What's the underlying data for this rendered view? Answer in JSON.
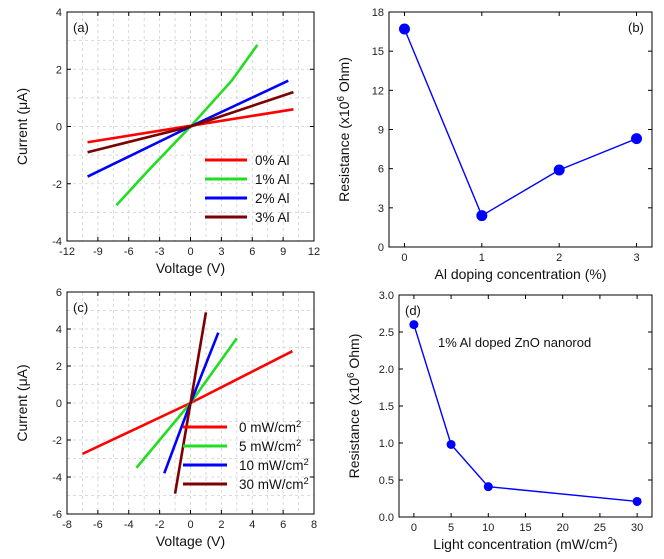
{
  "chart_data": [
    {
      "panel": "(a)",
      "type": "line",
      "xlabel": "Voltage (V)",
      "ylabel": "Current (μA)",
      "xlim": [
        -12,
        12
      ],
      "ylim": [
        -4,
        4
      ],
      "xticks": [
        -12,
        -9,
        -6,
        -3,
        0,
        3,
        6,
        9,
        12
      ],
      "yticks": [
        -4,
        -2,
        0,
        2,
        4
      ],
      "grid": true,
      "legend": "bottom-right",
      "series": [
        {
          "name": "0% Al",
          "color": "#ff0000",
          "points": [
            [
              -10,
              -0.55
            ],
            [
              10,
              0.6
            ]
          ]
        },
        {
          "name": "1% Al",
          "color": "#22dd22",
          "points": [
            [
              -7.2,
              -2.75
            ],
            [
              -4,
              -1.5
            ],
            [
              0,
              0
            ],
            [
              4,
              1.6
            ],
            [
              6.5,
              2.85
            ]
          ]
        },
        {
          "name": "2% Al",
          "color": "#0000ff",
          "points": [
            [
              -10,
              -1.75
            ],
            [
              0,
              0
            ],
            [
              9.5,
              1.6
            ]
          ]
        },
        {
          "name": "3% Al",
          "color": "#7b0000",
          "points": [
            [
              -10,
              -0.9
            ],
            [
              0,
              0
            ],
            [
              10,
              1.2
            ]
          ]
        }
      ]
    },
    {
      "panel": "(b)",
      "type": "line",
      "xlabel": "Al doping concentration (%)",
      "ylabel": "Resistance (x10⁶ Ohm)",
      "xlim": [
        -0.2,
        3.2
      ],
      "ylim": [
        0,
        18
      ],
      "xticks": [
        0,
        1,
        2,
        3
      ],
      "yticks": [
        0,
        3,
        6,
        9,
        12,
        15,
        18
      ],
      "color": "#0000ff",
      "x": [
        0,
        1,
        2,
        3
      ],
      "y": [
        16.7,
        2.4,
        5.9,
        8.3
      ]
    },
    {
      "panel": "(c)",
      "type": "line",
      "xlabel": "Voltage (V)",
      "ylabel": "Current (μA)",
      "xlim": [
        -8,
        8
      ],
      "ylim": [
        -6,
        6
      ],
      "xticks": [
        -8,
        -6,
        -4,
        -2,
        0,
        2,
        4,
        6,
        8
      ],
      "yticks": [
        -6,
        -4,
        -2,
        0,
        2,
        4,
        6
      ],
      "grid": true,
      "legend": "bottom-right",
      "series": [
        {
          "name": "0 mW/cm²",
          "color": "#ff0000",
          "points": [
            [
              -7,
              -2.75
            ],
            [
              0,
              0
            ],
            [
              6.6,
              2.8
            ]
          ]
        },
        {
          "name": "5 mW/cm²",
          "color": "#22dd22",
          "points": [
            [
              -3.5,
              -3.5
            ],
            [
              0,
              0
            ],
            [
              3,
              3.5
            ]
          ]
        },
        {
          "name": "10 mW/cm²",
          "color": "#0000ff",
          "points": [
            [
              -1.7,
              -3.8
            ],
            [
              0,
              0
            ],
            [
              1.8,
              3.8
            ]
          ]
        },
        {
          "name": "30 mW/cm²",
          "color": "#7b0000",
          "points": [
            [
              -1,
              -4.9
            ],
            [
              0,
              0
            ],
            [
              1,
              4.9
            ]
          ]
        }
      ]
    },
    {
      "panel": "(d)",
      "type": "line",
      "xlabel": "Light concentration (mW/cm²)",
      "ylabel": "Resistance (x10⁶ Ohm)",
      "annotation": "1% Al doped ZnO nanorod",
      "xlim": [
        -2,
        32
      ],
      "ylim": [
        0,
        3
      ],
      "xticks": [
        0,
        5,
        10,
        15,
        20,
        25,
        30
      ],
      "yticks": [
        0.0,
        0.5,
        1.0,
        1.5,
        2.0,
        2.5,
        3.0
      ],
      "color": "#0000ff",
      "x": [
        0,
        5,
        10,
        30
      ],
      "y": [
        2.6,
        0.98,
        0.41,
        0.21
      ]
    }
  ]
}
